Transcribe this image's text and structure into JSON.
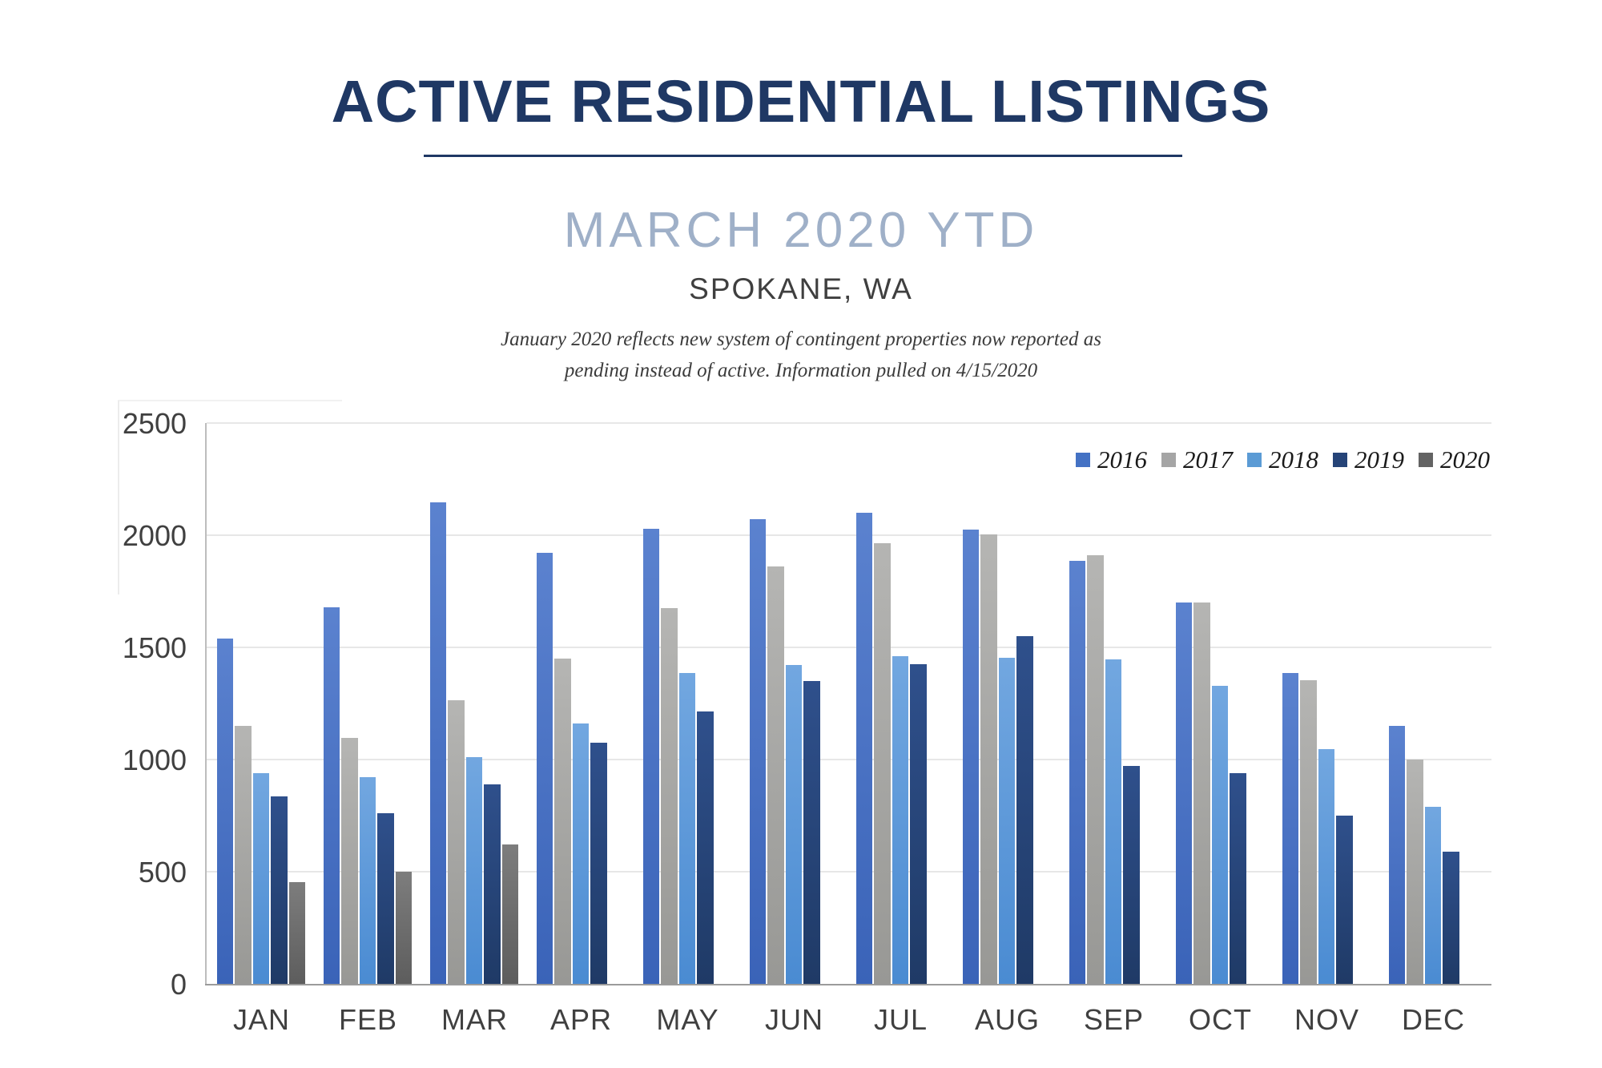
{
  "header": {
    "title": "ACTIVE RESIDENTIAL LISTINGS",
    "subtitle": "MARCH 2020 YTD",
    "location": "SPOKANE, WA",
    "note_line1": "January 2020 reflects new system of contingent properties now reported as",
    "note_line2": "pending instead of active.  Information pulled on 4/15/2020"
  },
  "colors": {
    "title_navy": "#1F3864",
    "subtitle_blue_gray": "#9FB0C8",
    "axis_text": "#404040",
    "gridline": "#E7E7E7"
  },
  "chart_data": {
    "type": "bar",
    "title": "ACTIVE RESIDENTIAL LISTINGS",
    "subtitle": "MARCH 2020 YTD",
    "xlabel": "",
    "ylabel": "",
    "ylim": [
      0,
      2500
    ],
    "yticks": [
      0,
      500,
      1000,
      1500,
      2000,
      2500
    ],
    "grid": true,
    "legend_position": "top-right",
    "categories": [
      "JAN",
      "FEB",
      "MAR",
      "APR",
      "MAY",
      "JUN",
      "JUL",
      "AUG",
      "SEP",
      "OCT",
      "NOV",
      "DEC"
    ],
    "series": [
      {
        "name": "2016",
        "color": "#4472C4",
        "color_top": "#5b82cf",
        "color_bottom": "#3a63b8",
        "values": [
          1540,
          1680,
          2145,
          1920,
          2030,
          2070,
          2100,
          2025,
          1885,
          1700,
          1385,
          1150
        ]
      },
      {
        "name": "2017",
        "color": "#A5A5A5",
        "color_top": "#b5b5b3",
        "color_bottom": "#989895",
        "values": [
          1150,
          1095,
          1265,
          1450,
          1675,
          1860,
          1965,
          2005,
          1910,
          1700,
          1355,
          1000
        ]
      },
      {
        "name": "2018",
        "color": "#5B9BD5",
        "color_top": "#72a7e0",
        "color_bottom": "#4a8bd2",
        "values": [
          940,
          920,
          1010,
          1160,
          1385,
          1420,
          1460,
          1455,
          1445,
          1330,
          1045,
          790
        ]
      },
      {
        "name": "2019",
        "color": "#264478",
        "color_top": "#2f508c",
        "color_bottom": "#1f3a66",
        "values": [
          835,
          760,
          890,
          1075,
          1215,
          1350,
          1425,
          1550,
          970,
          940,
          750,
          590
        ]
      },
      {
        "name": "2020",
        "color": "#636363",
        "color_top": "#7d7d7d",
        "color_bottom": "#5d5d5d",
        "values": [
          455,
          500,
          620,
          null,
          null,
          null,
          null,
          null,
          null,
          null,
          null,
          null
        ]
      }
    ]
  }
}
